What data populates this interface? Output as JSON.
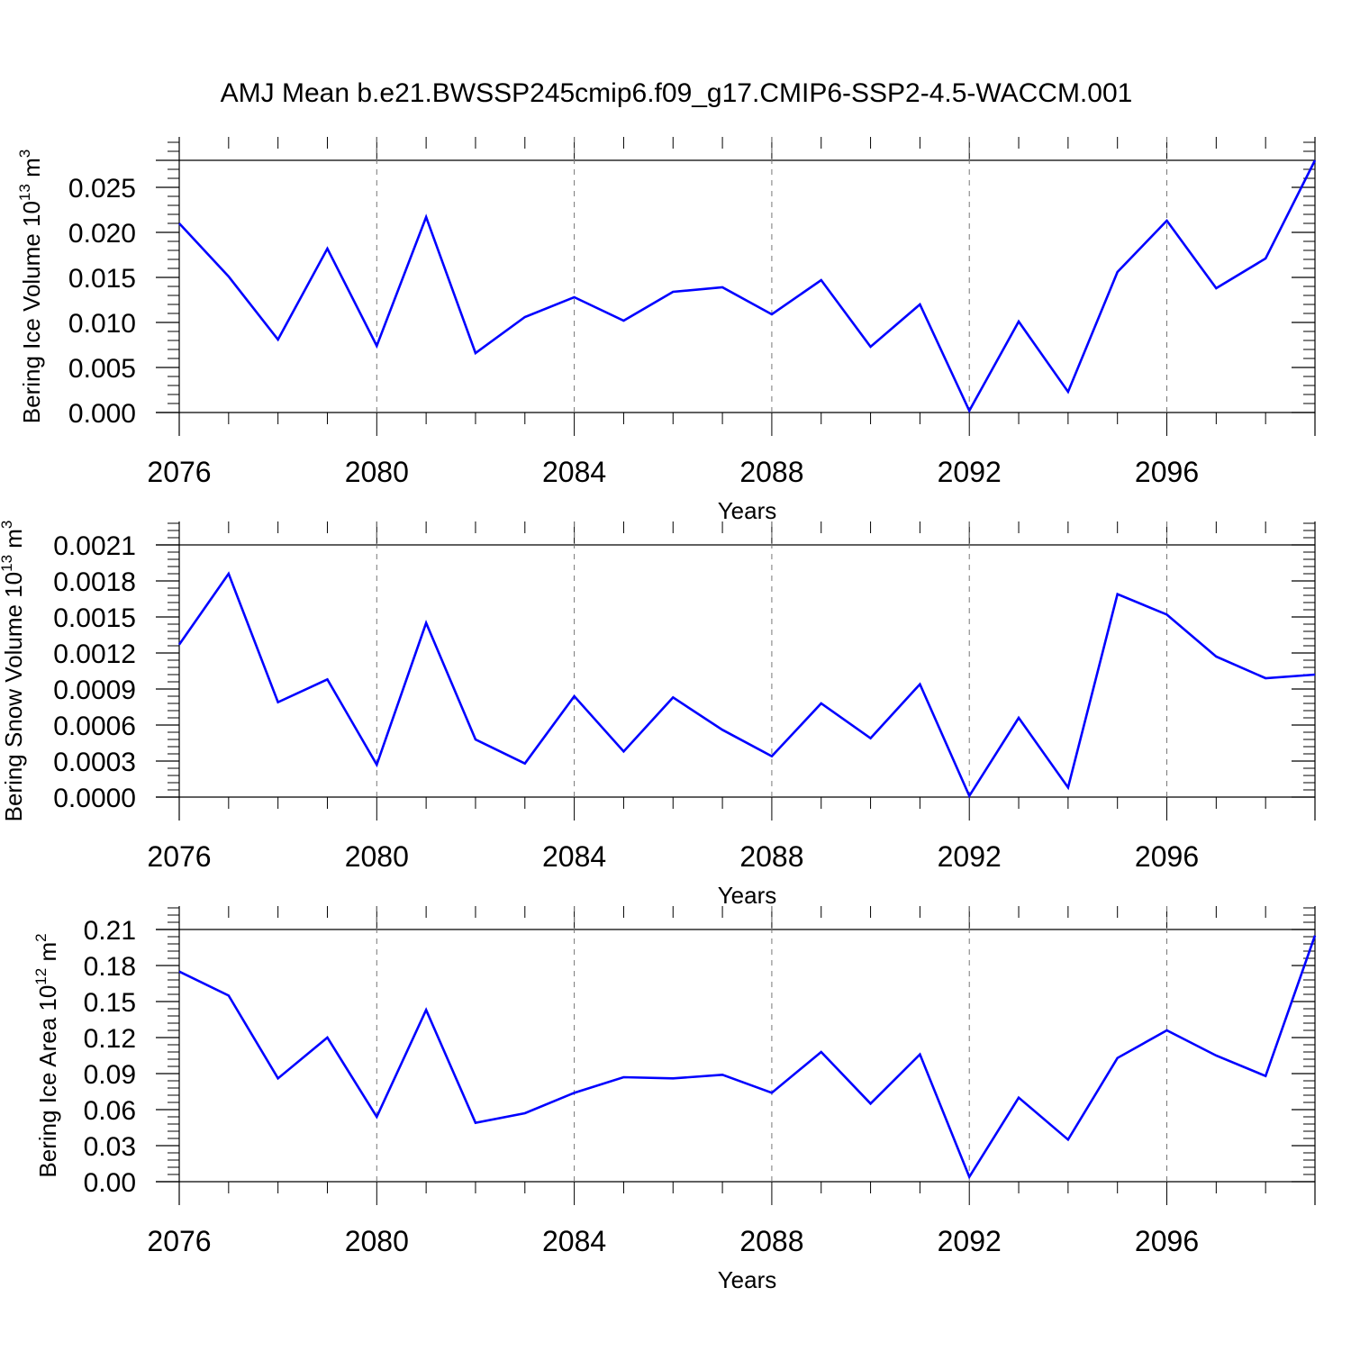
{
  "figure": {
    "title": "AMJ Mean b.e21.BWSSP245cmip6.f09_g17.CMIP6-SSP2-4.5-WACCM.001"
  },
  "chart_data": [
    {
      "type": "line",
      "title": "",
      "xlabel": "Years",
      "ylabel": {
        "base": "Bering Ice Volume 10",
        "exp": "13",
        "unit": " m",
        "unit_exp": "3"
      },
      "x": [
        2076,
        2077,
        2078,
        2079,
        2080,
        2081,
        2082,
        2083,
        2084,
        2085,
        2086,
        2087,
        2088,
        2089,
        2090,
        2091,
        2092,
        2093,
        2094,
        2095,
        2096,
        2097,
        2098,
        2099
      ],
      "series": [
        {
          "color": "#0000ff",
          "values": [
            0.021,
            0.0151,
            0.0081,
            0.0182,
            0.0074,
            0.0217,
            0.0066,
            0.0106,
            0.0128,
            0.0102,
            0.0134,
            0.0139,
            0.0109,
            0.0147,
            0.0073,
            0.012,
            0.0002,
            0.0101,
            0.0023,
            0.0156,
            0.0213,
            0.0138,
            0.0171,
            0.028
          ]
        }
      ],
      "xlim": [
        2076,
        2099
      ],
      "ylim": [
        0,
        0.028
      ],
      "yticks": [
        0,
        0.005,
        0.01,
        0.015,
        0.02,
        0.025
      ],
      "ytick_labels": [
        "0.000",
        "0.005",
        "0.010",
        "0.015",
        "0.020",
        "0.025"
      ],
      "xticks": [
        2076,
        2080,
        2084,
        2088,
        2092,
        2096
      ],
      "xtick_labels": [
        "2076",
        "2080",
        "2084",
        "2088",
        "2092",
        "2096"
      ],
      "vgrid": "dashed"
    },
    {
      "type": "line",
      "title": "",
      "xlabel": "Years",
      "ylabel": {
        "base": "Bering Snow Volume 10",
        "exp": "13",
        "unit": " m",
        "unit_exp": "3"
      },
      "x": [
        2076,
        2077,
        2078,
        2079,
        2080,
        2081,
        2082,
        2083,
        2084,
        2085,
        2086,
        2087,
        2088,
        2089,
        2090,
        2091,
        2092,
        2093,
        2094,
        2095,
        2096,
        2097,
        2098,
        2099
      ],
      "series": [
        {
          "color": "#0000ff",
          "values": [
            0.00127,
            0.00186,
            0.00079,
            0.00098,
            0.00027,
            0.00145,
            0.00048,
            0.00028,
            0.00084,
            0.00038,
            0.00083,
            0.00056,
            0.00034,
            0.00078,
            0.00049,
            0.00094,
            1e-05,
            0.00066,
            8e-05,
            0.00169,
            0.00152,
            0.00117,
            0.00099,
            0.00102
          ]
        }
      ],
      "xlim": [
        2076,
        2099
      ],
      "ylim": [
        0,
        0.0021
      ],
      "yticks": [
        0,
        0.0003,
        0.0006,
        0.0009,
        0.0012,
        0.0015,
        0.0018,
        0.0021
      ],
      "ytick_labels": [
        "0.0000",
        "0.0003",
        "0.0006",
        "0.0009",
        "0.0012",
        "0.0015",
        "0.0018",
        "0.0021"
      ],
      "xticks": [
        2076,
        2080,
        2084,
        2088,
        2092,
        2096
      ],
      "xtick_labels": [
        "2076",
        "2080",
        "2084",
        "2088",
        "2092",
        "2096"
      ],
      "vgrid": "dashed"
    },
    {
      "type": "line",
      "title": "",
      "xlabel": "Years",
      "ylabel": {
        "base": "Bering Ice Area 10",
        "exp": "12",
        "unit": " m",
        "unit_exp": "2"
      },
      "x": [
        2076,
        2077,
        2078,
        2079,
        2080,
        2081,
        2082,
        2083,
        2084,
        2085,
        2086,
        2087,
        2088,
        2089,
        2090,
        2091,
        2092,
        2093,
        2094,
        2095,
        2096,
        2097,
        2098,
        2099
      ],
      "series": [
        {
          "color": "#0000ff",
          "values": [
            0.175,
            0.155,
            0.086,
            0.12,
            0.054,
            0.143,
            0.049,
            0.057,
            0.074,
            0.087,
            0.086,
            0.089,
            0.074,
            0.108,
            0.065,
            0.106,
            0.004,
            0.07,
            0.035,
            0.103,
            0.126,
            0.105,
            0.088,
            0.205
          ]
        }
      ],
      "xlim": [
        2076,
        2099
      ],
      "ylim": [
        0,
        0.21
      ],
      "yticks": [
        0,
        0.03,
        0.06,
        0.09,
        0.12,
        0.15,
        0.18,
        0.21
      ],
      "ytick_labels": [
        "0.00",
        "0.03",
        "0.06",
        "0.09",
        "0.12",
        "0.15",
        "0.18",
        "0.21"
      ],
      "xticks": [
        2076,
        2080,
        2084,
        2088,
        2092,
        2096
      ],
      "xtick_labels": [
        "2076",
        "2080",
        "2084",
        "2088",
        "2092",
        "2096"
      ],
      "vgrid": "dashed"
    }
  ]
}
